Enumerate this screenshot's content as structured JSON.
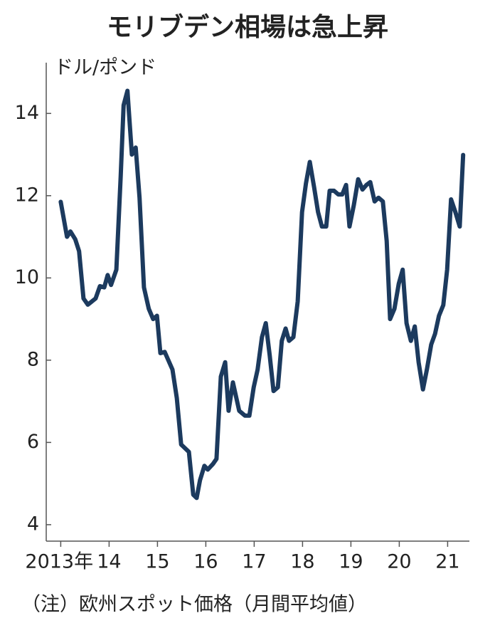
{
  "chart_data": {
    "type": "line",
    "title": "モリブデン相場は急上昇",
    "y_label": "ドル/ポンド",
    "note": "（注）欧州スポット価格（月間平均値）",
    "color": "#1c3a5e",
    "x": [
      2013.0,
      2013.13,
      2013.2,
      2013.3,
      2013.38,
      2013.47,
      2013.56,
      2013.72,
      2013.81,
      2013.9,
      2013.97,
      2014.04,
      2014.15,
      2014.24,
      2014.3,
      2014.38,
      2014.47,
      2014.55,
      2014.63,
      2014.72,
      2014.82,
      2014.91,
      2014.99,
      2015.06,
      2015.15,
      2015.31,
      2015.4,
      2015.49,
      2015.65,
      2015.74,
      2015.81,
      2015.88,
      2015.97,
      2016.04,
      2016.15,
      2016.22,
      2016.31,
      2016.4,
      2016.47,
      2016.56,
      2016.69,
      2016.81,
      2016.9,
      2016.99,
      2017.07,
      2017.16,
      2017.24,
      2017.32,
      2017.4,
      2017.49,
      2017.57,
      2017.65,
      2017.72,
      2017.81,
      2017.9,
      2017.99,
      2018.07,
      2018.15,
      2018.24,
      2018.32,
      2018.4,
      2018.49,
      2018.56,
      2018.65,
      2018.74,
      2018.82,
      2018.9,
      2018.97,
      2019.06,
      2019.15,
      2019.24,
      2019.32,
      2019.4,
      2019.49,
      2019.57,
      2019.66,
      2019.74,
      2019.81,
      2019.9,
      2019.99,
      2020.07,
      2020.15,
      2020.24,
      2020.32,
      2020.4,
      2020.49,
      2020.57,
      2020.66,
      2020.74,
      2020.82,
      2020.91,
      2020.99,
      2021.07,
      2021.16,
      2021.25,
      2021.32
    ],
    "values": [
      11.85,
      11.0,
      11.13,
      10.94,
      10.65,
      9.5,
      9.35,
      9.5,
      9.8,
      9.77,
      10.07,
      9.83,
      10.2,
      12.47,
      14.2,
      14.55,
      13.0,
      13.17,
      11.95,
      9.77,
      9.25,
      9.0,
      9.08,
      8.17,
      8.2,
      7.77,
      7.08,
      5.95,
      5.77,
      4.73,
      4.65,
      5.08,
      5.43,
      5.34,
      5.48,
      5.6,
      7.6,
      7.95,
      6.77,
      7.46,
      6.77,
      6.65,
      6.65,
      7.34,
      7.77,
      8.56,
      8.9,
      8.12,
      7.25,
      7.34,
      8.47,
      8.77,
      8.47,
      8.56,
      9.43,
      11.6,
      12.3,
      12.82,
      12.2,
      11.6,
      11.25,
      11.25,
      12.12,
      12.12,
      12.03,
      12.03,
      12.26,
      11.25,
      11.77,
      12.4,
      12.15,
      12.26,
      12.33,
      11.86,
      11.95,
      11.86,
      10.9,
      9.0,
      9.25,
      9.86,
      10.2,
      8.9,
      8.47,
      8.82,
      7.95,
      7.29,
      7.77,
      8.38,
      8.64,
      9.08,
      9.34,
      10.2,
      11.91,
      11.6,
      11.25,
      12.99
    ],
    "xlim": [
      2012.7,
      2021.45
    ],
    "xticks": [
      {
        "value": 2013,
        "label": "2013年"
      },
      {
        "value": 2014,
        "label": "14"
      },
      {
        "value": 2015,
        "label": "15"
      },
      {
        "value": 2016,
        "label": "16"
      },
      {
        "value": 2017,
        "label": "17"
      },
      {
        "value": 2018,
        "label": "18"
      },
      {
        "value": 2019,
        "label": "19"
      },
      {
        "value": 2020,
        "label": "20"
      },
      {
        "value": 2021,
        "label": "21"
      }
    ],
    "ylim": [
      3.6,
      15.2
    ],
    "yticks": [
      4,
      6,
      8,
      10,
      12,
      14
    ]
  }
}
